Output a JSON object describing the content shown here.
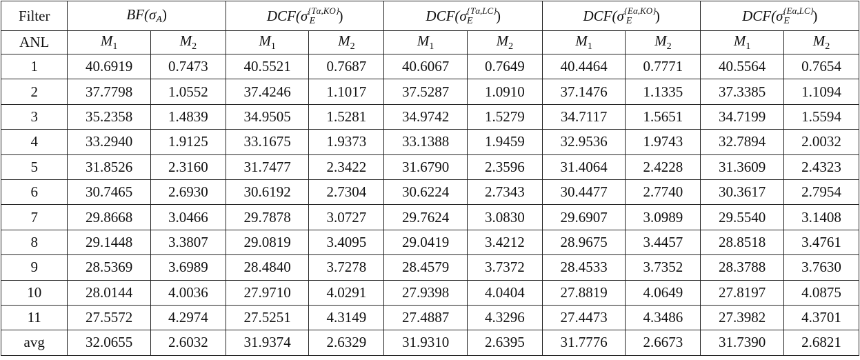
{
  "table": {
    "corner_top": "Filter",
    "corner_bottom": "ANL",
    "groups": [
      {
        "base": "BF(σ",
        "sub": "A",
        "sup": "",
        "close": ")"
      },
      {
        "base": "DCF(σ",
        "sub": "E",
        "sup": "{Tα,KO}",
        "close": ")"
      },
      {
        "base": "DCF(σ",
        "sub": "E",
        "sup": "{Tα,LC}",
        "close": ")"
      },
      {
        "base": "DCF(σ",
        "sub": "E",
        "sup": "{Eα,KO}",
        "close": ")"
      },
      {
        "base": "DCF(σ",
        "sub": "E",
        "sup": "{Eα,LC}",
        "close": ")"
      }
    ],
    "metric_symbol": "M",
    "metric_subs": [
      "1",
      "2"
    ],
    "rows": [
      {
        "label": "1",
        "values": [
          "40.6919",
          "0.7473",
          "40.5521",
          "0.7687",
          "40.6067",
          "0.7649",
          "40.4464",
          "0.7771",
          "40.5564",
          "0.7654"
        ]
      },
      {
        "label": "2",
        "values": [
          "37.7798",
          "1.0552",
          "37.4246",
          "1.1017",
          "37.5287",
          "1.0910",
          "37.1476",
          "1.1335",
          "37.3385",
          "1.1094"
        ]
      },
      {
        "label": "3",
        "values": [
          "35.2358",
          "1.4839",
          "34.9505",
          "1.5281",
          "34.9742",
          "1.5279",
          "34.7117",
          "1.5651",
          "34.7199",
          "1.5594"
        ]
      },
      {
        "label": "4",
        "values": [
          "33.2940",
          "1.9125",
          "33.1675",
          "1.9373",
          "33.1388",
          "1.9459",
          "32.9536",
          "1.9743",
          "32.7894",
          "2.0032"
        ]
      },
      {
        "label": "5",
        "values": [
          "31.8526",
          "2.3160",
          "31.7477",
          "2.3422",
          "31.6790",
          "2.3596",
          "31.4064",
          "2.4228",
          "31.3609",
          "2.4323"
        ]
      },
      {
        "label": "6",
        "values": [
          "30.7465",
          "2.6930",
          "30.6192",
          "2.7304",
          "30.6224",
          "2.7343",
          "30.4477",
          "2.7740",
          "30.3617",
          "2.7954"
        ]
      },
      {
        "label": "7",
        "values": [
          "29.8668",
          "3.0466",
          "29.7878",
          "3.0727",
          "29.7624",
          "3.0830",
          "29.6907",
          "3.0989",
          "29.5540",
          "3.1408"
        ]
      },
      {
        "label": "8",
        "values": [
          "29.1448",
          "3.3807",
          "29.0819",
          "3.4095",
          "29.0419",
          "3.4212",
          "28.9675",
          "3.4457",
          "28.8518",
          "3.4761"
        ]
      },
      {
        "label": "9",
        "values": [
          "28.5369",
          "3.6989",
          "28.4840",
          "3.7278",
          "28.4579",
          "3.7372",
          "28.4533",
          "3.7352",
          "28.3788",
          "3.7630"
        ]
      },
      {
        "label": "10",
        "values": [
          "28.0144",
          "4.0036",
          "27.9710",
          "4.0291",
          "27.9398",
          "4.0404",
          "27.8819",
          "4.0649",
          "27.8197",
          "4.0875"
        ]
      },
      {
        "label": "11",
        "values": [
          "27.5572",
          "4.2974",
          "27.5251",
          "4.3149",
          "27.4887",
          "4.3296",
          "27.4473",
          "4.3486",
          "27.3982",
          "4.3701"
        ]
      },
      {
        "label": "avg",
        "values": [
          "32.0655",
          "2.6032",
          "31.9374",
          "2.6329",
          "31.9310",
          "2.6395",
          "31.7776",
          "2.6673",
          "31.7390",
          "2.6821"
        ]
      }
    ]
  }
}
